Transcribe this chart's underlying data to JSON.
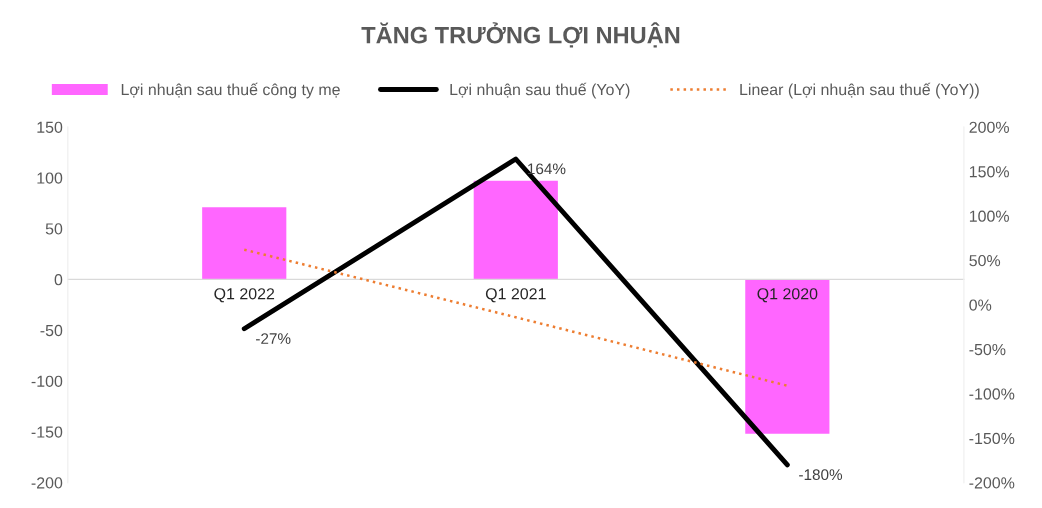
{
  "chart_data": {
    "type": "bar",
    "title": "TĂNG TRƯỞNG LỢI NHUẬN",
    "categories": [
      "Q1 2022",
      "Q1 2021",
      "Q1 2020"
    ],
    "series": [
      {
        "name": "Lợi nhuận sau thuế công ty mẹ",
        "color": "#ff66ff",
        "values": [
          71,
          97,
          -152
        ]
      },
      {
        "name": "Lợi nhuận sau thuế (YoY)",
        "type": "line",
        "axis": "y2",
        "color": "#000000",
        "values": [
          -27,
          164,
          -180
        ],
        "value_labels": [
          "-27%",
          "164%",
          "-180%"
        ],
        "line_style": "solid"
      },
      {
        "name": "Linear (Lợi nhuận sau thuế (YoY))",
        "type": "line",
        "axis": "y2",
        "color": "#ed7d31",
        "values": [
          62,
          -14,
          -91
        ],
        "line_style": "dotted"
      }
    ],
    "ylim": [
      -200,
      150
    ],
    "yticks": [
      -200,
      -150,
      -100,
      -50,
      0,
      50,
      100,
      150
    ],
    "y2lim": [
      -200,
      200
    ],
    "y2ticks": [
      {
        "value": -200,
        "label": "-200%"
      },
      {
        "value": -150,
        "label": "-150%"
      },
      {
        "value": -100,
        "label": "-100%"
      },
      {
        "value": -50,
        "label": "-50%"
      },
      {
        "value": 0,
        "label": "0%"
      },
      {
        "value": 50,
        "label": "50%"
      },
      {
        "value": 100,
        "label": "100%"
      },
      {
        "value": 150,
        "label": "150%"
      },
      {
        "value": 200,
        "label": "200%"
      }
    ],
    "grid": false,
    "legend": "top"
  }
}
